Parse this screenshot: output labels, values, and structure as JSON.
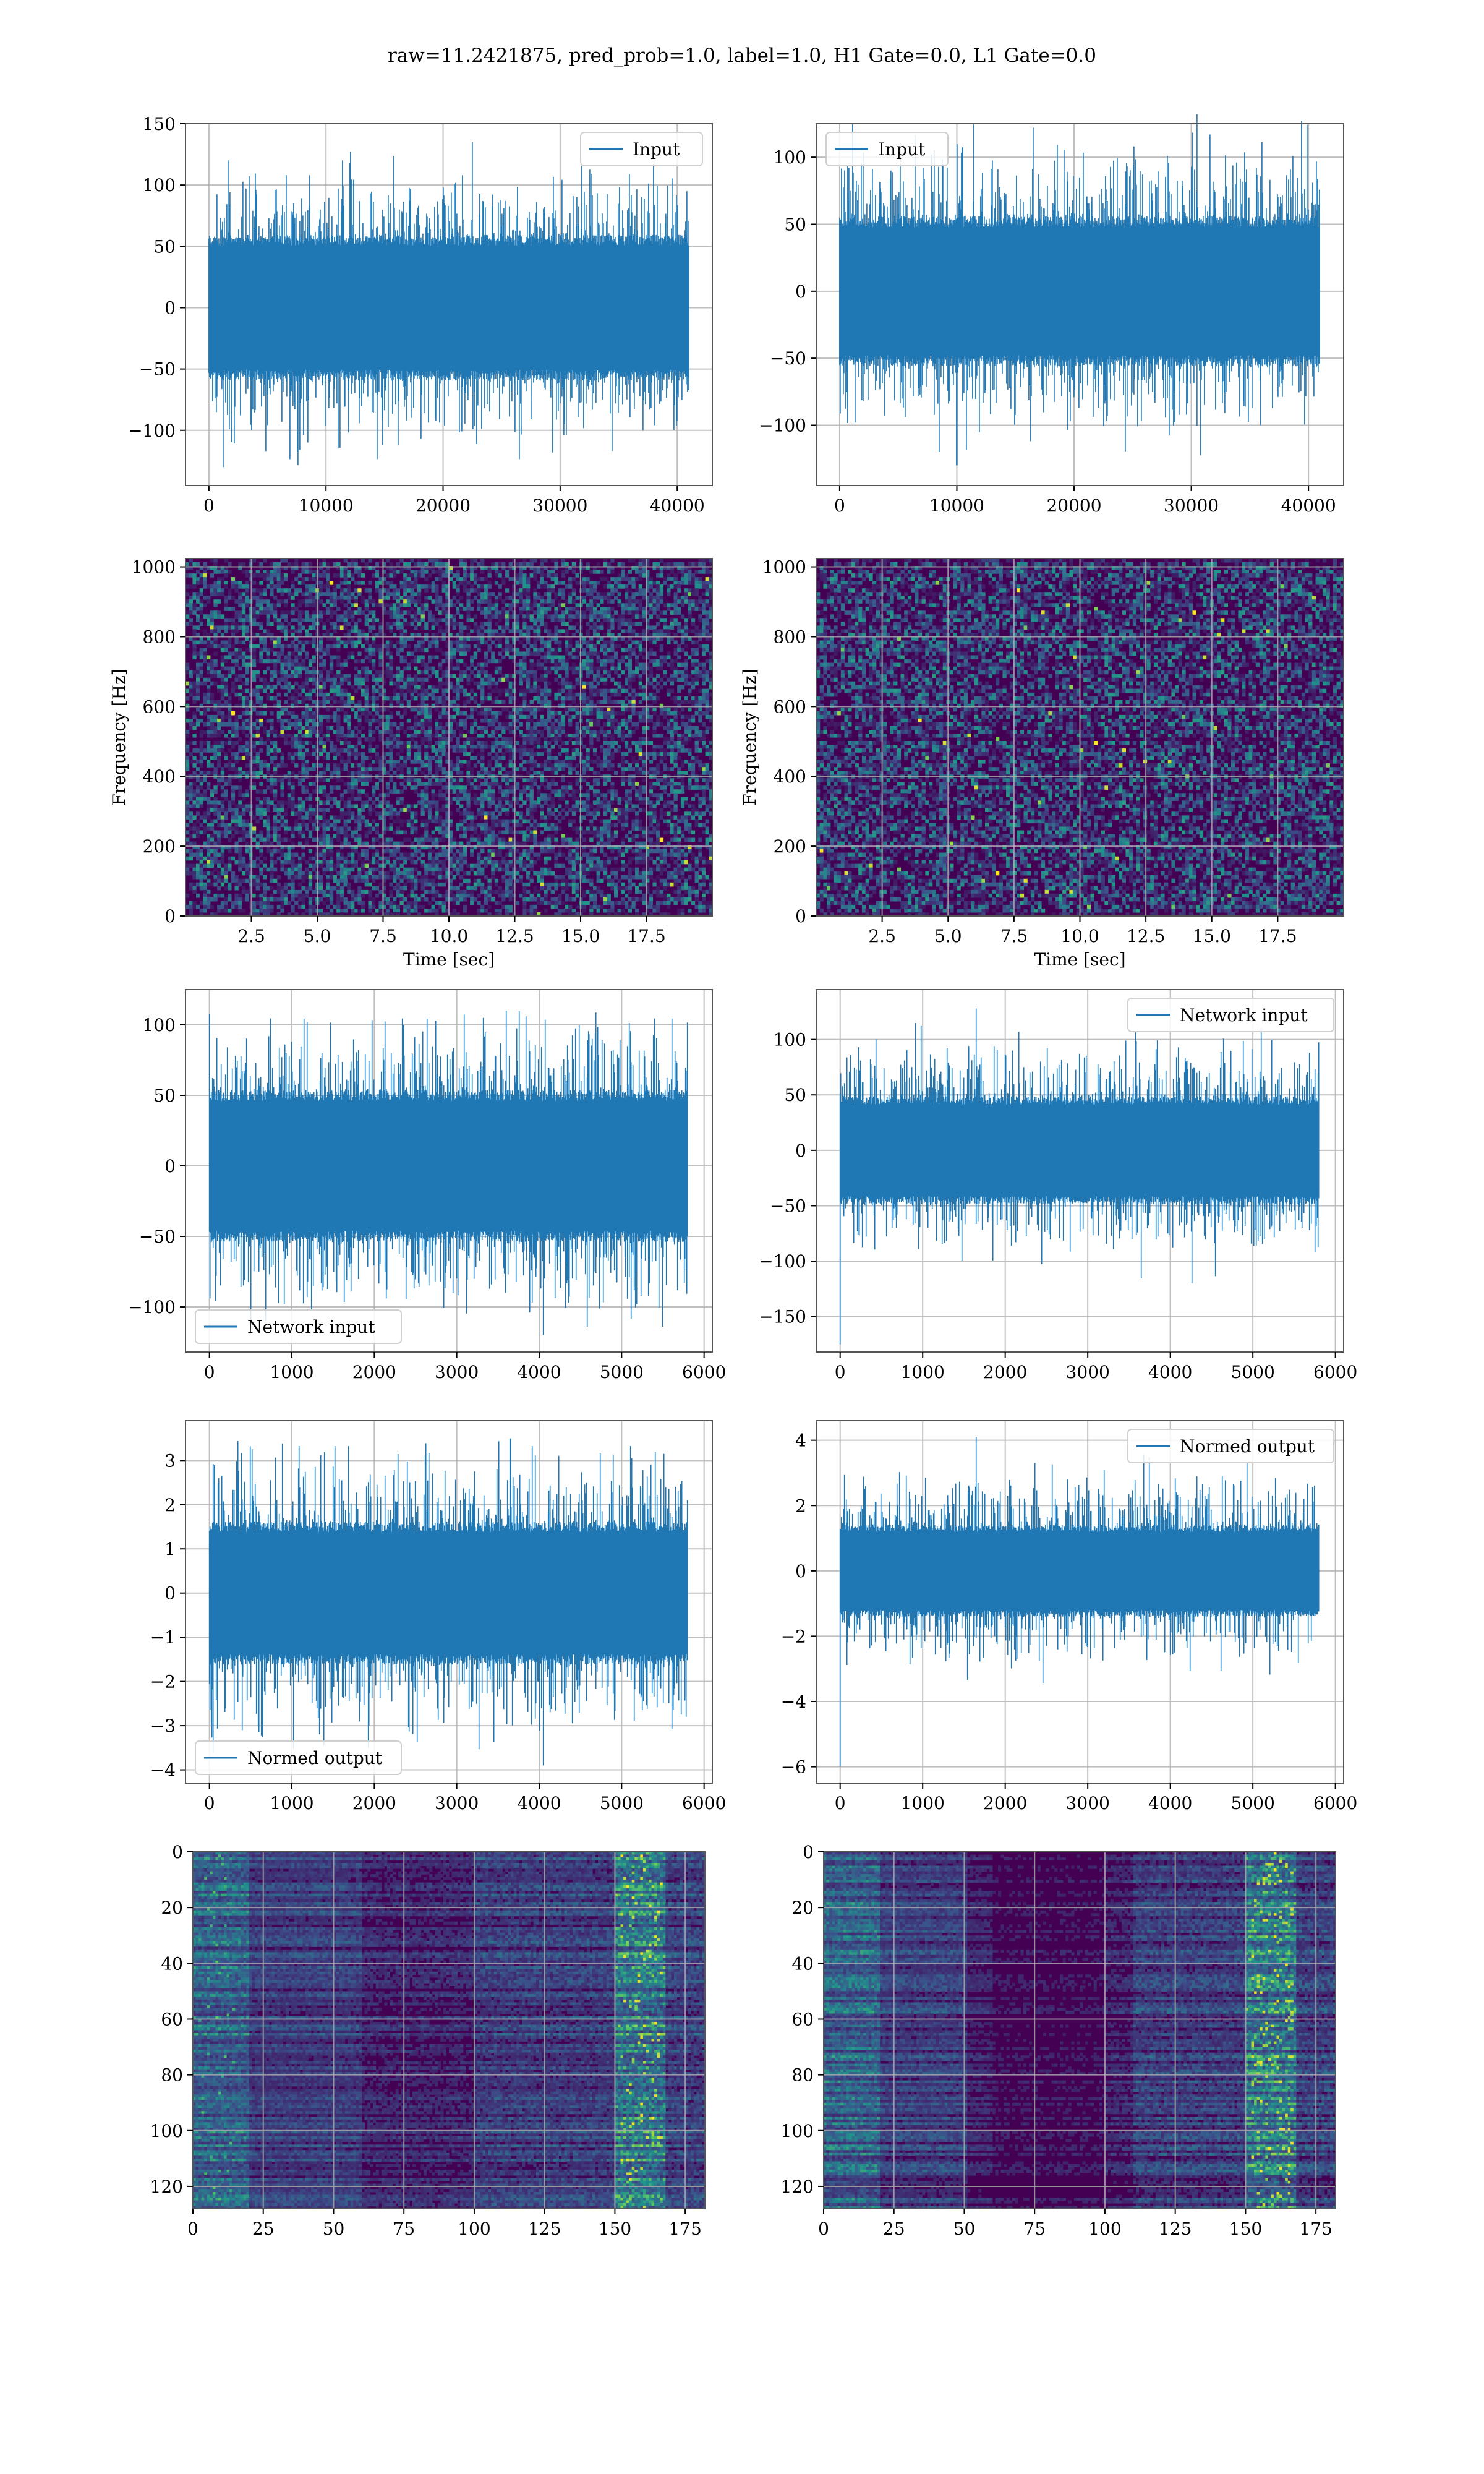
{
  "suptitle": "raw=11.2421875, pred_prob=1.0, label=1.0, H1 Gate=0.0, L1 Gate=0.0",
  "colors": {
    "line": "#1f77b4",
    "grid": "#b0b0b0",
    "spine": "#555555",
    "heat_low": "#440154",
    "heat_high": "#fde725"
  },
  "chart_data": [
    {
      "id": "p1",
      "type": "line",
      "row": 0,
      "col": 0,
      "legend": "Input",
      "legend_loc": "top-right",
      "xlim": [
        -2000,
        43000
      ],
      "ylim": [
        -145,
        150
      ],
      "n_samples": 40960,
      "xticks": [
        0,
        10000,
        20000,
        30000,
        40000
      ],
      "yticks": [
        -100,
        -50,
        0,
        50,
        100,
        150
      ],
      "envelope": {
        "typical": 55,
        "peak": 100,
        "spike_pos": 135,
        "spike_neg": -130,
        "spike_pos_x": 22500,
        "spike_neg_x": 1200
      }
    },
    {
      "id": "p2",
      "type": "line",
      "row": 0,
      "col": 1,
      "legend": "Input",
      "legend_loc": "top-left",
      "xlim": [
        -2000,
        43000
      ],
      "ylim": [
        -145,
        125
      ],
      "n_samples": 40960,
      "xticks": [
        0,
        10000,
        20000,
        30000,
        40000
      ],
      "yticks": [
        -100,
        -50,
        0,
        50,
        100
      ],
      "envelope": {
        "typical": 52,
        "peak": 95,
        "spike_pos": 132,
        "spike_neg": -130,
        "spike_pos_x": 30500,
        "spike_neg_x": 10000
      }
    },
    {
      "id": "p3",
      "type": "heatmap",
      "row": 1,
      "col": 0,
      "xlabel": "Time [sec]",
      "ylabel": "Frequency [Hz]",
      "xlim": [
        0,
        20
      ],
      "ylim": [
        0,
        1024
      ],
      "xticks": [
        2.5,
        5.0,
        7.5,
        10.0,
        12.5,
        15.0,
        17.5
      ],
      "yticks": [
        0,
        200,
        400,
        600,
        800,
        1000
      ]
    },
    {
      "id": "p4",
      "type": "heatmap",
      "row": 1,
      "col": 1,
      "xlabel": "Time [sec]",
      "ylabel": "Frequency [Hz]",
      "xlim": [
        0,
        20
      ],
      "ylim": [
        0,
        1024
      ],
      "xticks": [
        2.5,
        5.0,
        7.5,
        10.0,
        12.5,
        15.0,
        17.5
      ],
      "yticks": [
        0,
        200,
        400,
        600,
        800,
        1000
      ]
    },
    {
      "id": "p5",
      "type": "line",
      "row": 2,
      "col": 0,
      "legend": "Network input",
      "legend_loc": "bottom-left",
      "xlim": [
        -290,
        6100
      ],
      "ylim": [
        -132,
        125
      ],
      "n_samples": 5800,
      "xticks": [
        0,
        1000,
        2000,
        3000,
        4000,
        5000,
        6000
      ],
      "yticks": [
        -100,
        -50,
        0,
        50,
        100
      ],
      "envelope": {
        "typical": 50,
        "peak": 95,
        "spike_pos": 110,
        "spike_neg": -120,
        "spike_pos_x": 3600,
        "spike_neg_x": 4050
      }
    },
    {
      "id": "p6",
      "type": "line",
      "row": 2,
      "col": 1,
      "legend": "Network input",
      "legend_loc": "top-right",
      "xlim": [
        -290,
        6100
      ],
      "ylim": [
        -182,
        145
      ],
      "n_samples": 5800,
      "xticks": [
        0,
        1000,
        2000,
        3000,
        4000,
        5000,
        6000
      ],
      "yticks": [
        -150,
        -100,
        -50,
        0,
        50,
        100
      ],
      "envelope": {
        "typical": 45,
        "peak": 85,
        "spike_pos": 128,
        "spike_neg": -175,
        "spike_pos_x": 1650,
        "spike_neg_x": 0
      }
    },
    {
      "id": "p7",
      "type": "line",
      "row": 3,
      "col": 0,
      "legend": "Normed output",
      "legend_loc": "bottom-left",
      "xlim": [
        -290,
        6100
      ],
      "ylim": [
        -4.3,
        3.9
      ],
      "n_samples": 5800,
      "xticks": [
        0,
        1000,
        2000,
        3000,
        4000,
        5000,
        6000
      ],
      "yticks": [
        -4,
        -3,
        -2,
        -1,
        0,
        1,
        2,
        3
      ],
      "envelope": {
        "typical": 1.5,
        "peak": 2.9,
        "spike_pos": 3.5,
        "spike_neg": -3.9,
        "spike_pos_x": 3650,
        "spike_neg_x": 4050
      }
    },
    {
      "id": "p8",
      "type": "line",
      "row": 3,
      "col": 1,
      "legend": "Normed output",
      "legend_loc": "top-right",
      "xlim": [
        -290,
        6100
      ],
      "ylim": [
        -6.5,
        4.6
      ],
      "n_samples": 5800,
      "xticks": [
        0,
        1000,
        2000,
        3000,
        4000,
        5000,
        6000
      ],
      "yticks": [
        -6,
        -4,
        -2,
        0,
        2,
        4
      ],
      "envelope": {
        "typical": 1.3,
        "peak": 2.6,
        "spike_pos": 4.1,
        "spike_neg": -6.0,
        "spike_pos_x": 1650,
        "spike_neg_x": 0
      }
    },
    {
      "id": "p9",
      "type": "heatmap",
      "row": 4,
      "col": 0,
      "xlim": [
        0,
        182
      ],
      "ylim": [
        128,
        0
      ],
      "xticks": [
        0,
        25,
        50,
        75,
        100,
        125,
        150,
        175
      ],
      "yticks": [
        0,
        20,
        40,
        60,
        80,
        100,
        120
      ]
    },
    {
      "id": "p10",
      "type": "heatmap",
      "row": 4,
      "col": 1,
      "xlim": [
        0,
        182
      ],
      "ylim": [
        128,
        0
      ],
      "xticks": [
        0,
        25,
        50,
        75,
        100,
        125,
        150,
        175
      ],
      "yticks": [
        0,
        20,
        40,
        60,
        80,
        100,
        120
      ]
    }
  ]
}
